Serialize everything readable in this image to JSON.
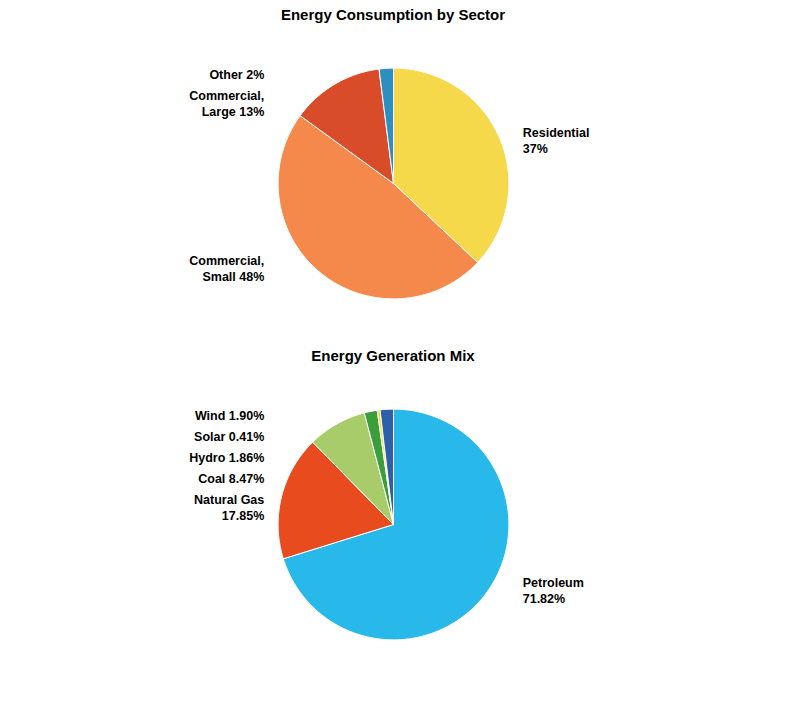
{
  "chart_data": [
    {
      "type": "pie",
      "title": "Energy Consumption by Sector",
      "categories": [
        "Residential\n37%",
        "Commercial,\nSmall 48%",
        "Commercial,\nLarge 13%",
        "Other 2%"
      ],
      "values": [
        37,
        48,
        13,
        2
      ],
      "colors": [
        "#f6d84b",
        "#f5894c",
        "#d94c2a",
        "#2d8fc0"
      ]
    },
    {
      "type": "pie",
      "title": "Energy Generation Mix",
      "categories": [
        "Petroleum\n71.82%",
        "Natural Gas\n17.85%",
        "Coal 8.47%",
        "Hydro 1.86%",
        "Solar 0.41%",
        "Wind 1.90%"
      ],
      "values": [
        71.82,
        17.85,
        8.47,
        1.86,
        0.41,
        1.9
      ],
      "colors": [
        "#29b8ea",
        "#e84b1e",
        "#a8cc6a",
        "#3b9e3b",
        "#f0e030",
        "#2d5faa"
      ]
    }
  ]
}
